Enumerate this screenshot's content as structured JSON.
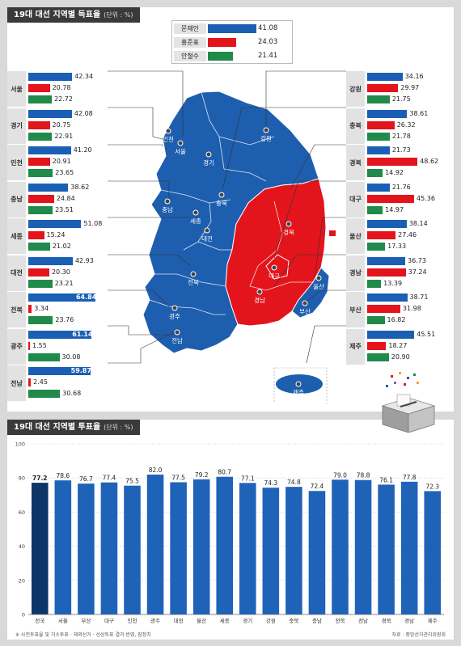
{
  "top": {
    "title": "19대 대선 지역별 득표율",
    "unit": "(단위 : %)"
  },
  "legend": [
    {
      "name": "문재인",
      "value": "41.08",
      "color": "#1a5fb4",
      "pct": 41.08
    },
    {
      "name": "홍준표",
      "value": "24.03",
      "color": "#e3141c",
      "pct": 24.03
    },
    {
      "name": "안철수",
      "value": "21.41",
      "color": "#1f8a4a",
      "pct": 21.41
    }
  ],
  "colors": {
    "moon": "#1a5fb4",
    "hong": "#e3141c",
    "ahn": "#1f8a4a",
    "map_blue": "#1e5eaf",
    "map_red": "#e3141c",
    "bar_blue": "#1e63b8",
    "bar_national": "#0d3567"
  },
  "regions_left": [
    {
      "name": "서울",
      "moon": "42.34",
      "hong": "20.78",
      "ahn": "22.72"
    },
    {
      "name": "경기",
      "moon": "42.08",
      "hong": "20.75",
      "ahn": "22.91"
    },
    {
      "name": "인천",
      "moon": "41.20",
      "hong": "20.91",
      "ahn": "23.65"
    },
    {
      "name": "충남",
      "moon": "38.62",
      "hong": "24.84",
      "ahn": "23.51"
    },
    {
      "name": "세종",
      "moon": "51.08",
      "hong": "15.24",
      "ahn": "21.02"
    },
    {
      "name": "대전",
      "moon": "42.93",
      "hong": "20.30",
      "ahn": "23.21"
    },
    {
      "name": "전북",
      "moon": "64.84",
      "hong": "3.34",
      "ahn": "23.76"
    },
    {
      "name": "광주",
      "moon": "61.14",
      "hong": "1.55",
      "ahn": "30.08"
    },
    {
      "name": "전남",
      "moon": "59.87",
      "hong": "2.45",
      "ahn": "30.68"
    }
  ],
  "regions_right": [
    {
      "name": "강원",
      "moon": "34.16",
      "hong": "29.97",
      "ahn": "21.75"
    },
    {
      "name": "충북",
      "moon": "38.61",
      "hong": "26.32",
      "ahn": "21.78"
    },
    {
      "name": "경북",
      "moon": "21.73",
      "hong": "48.62",
      "ahn": "14.92"
    },
    {
      "name": "대구",
      "moon": "21.76",
      "hong": "45.36",
      "ahn": "14.97"
    },
    {
      "name": "울산",
      "moon": "38.14",
      "hong": "27.46",
      "ahn": "17.33"
    },
    {
      "name": "경남",
      "moon": "36.73",
      "hong": "37.24",
      "ahn": "13.39"
    },
    {
      "name": "부산",
      "moon": "38.71",
      "hong": "31.98",
      "ahn": "16.82"
    },
    {
      "name": "제주",
      "moon": "45.51",
      "hong": "18.27",
      "ahn": "20.90"
    }
  ],
  "map_labels": [
    {
      "name": "인천"
    },
    {
      "name": "서울"
    },
    {
      "name": "경기"
    },
    {
      "name": "강원"
    },
    {
      "name": "충북"
    },
    {
      "name": "충남"
    },
    {
      "name": "세종"
    },
    {
      "name": "대전"
    },
    {
      "name": "경북"
    },
    {
      "name": "전북"
    },
    {
      "name": "대구"
    },
    {
      "name": "울산"
    },
    {
      "name": "경남"
    },
    {
      "name": "광주"
    },
    {
      "name": "부산"
    },
    {
      "name": "전남"
    },
    {
      "name": "제주"
    }
  ],
  "bottom": {
    "title": "19대 대선 지역별 투표율",
    "unit": "(단위 : %)",
    "footnote_left": "※ 사전투표율 및 거소투표 · 재외선거 · 선상투표 결과 반영, 잠정치",
    "footnote_right": "자료 : 중앙선거관리위원회"
  },
  "chart_data": {
    "type": "bar",
    "title": "19대 대선 지역별 투표율",
    "ylabel": "",
    "xlabel": "",
    "ylim": [
      0,
      100
    ],
    "yticks": [
      0,
      20,
      40,
      60,
      80,
      100
    ],
    "categories": [
      "전국",
      "서울",
      "부산",
      "대구",
      "인천",
      "광주",
      "대전",
      "울산",
      "세종",
      "경기",
      "강원",
      "충북",
      "충남",
      "전북",
      "전남",
      "경북",
      "경남",
      "제주"
    ],
    "values": [
      77.2,
      78.6,
      76.7,
      77.4,
      75.5,
      82.0,
      77.5,
      79.2,
      80.7,
      77.1,
      74.3,
      74.8,
      72.4,
      79.0,
      78.8,
      76.1,
      77.8,
      72.3
    ],
    "labels": [
      "77.2",
      "78.6",
      "76.7",
      "77.4",
      "75.5",
      "82.0",
      "77.5",
      "79.2",
      "80.7",
      "77.1",
      "74.3",
      "74.8",
      "72.4",
      "79.0",
      "78.8",
      "76.1",
      "77.8",
      "72.3"
    ],
    "grid": true
  }
}
